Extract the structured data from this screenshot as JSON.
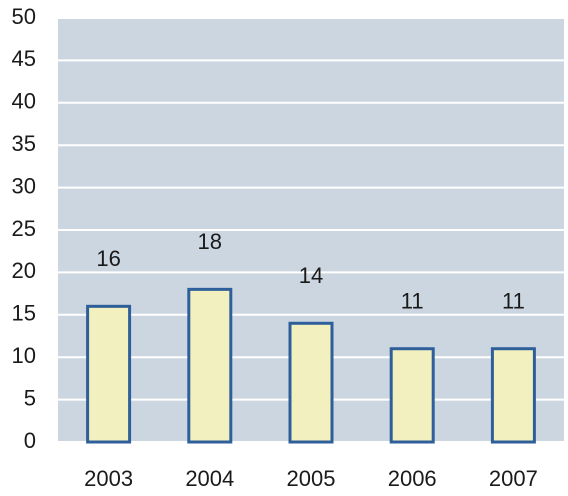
{
  "chart_data": {
    "type": "bar",
    "categories": [
      "2003",
      "2004",
      "2005",
      "2006",
      "2007"
    ],
    "values": [
      16,
      18,
      14,
      11,
      11
    ],
    "color": "#f2f0bf",
    "edge_color": "#2e5f9a",
    "background": "#ccd6e1",
    "ylim": [
      0,
      50
    ],
    "yticks": [
      0,
      5,
      10,
      15,
      20,
      25,
      30,
      35,
      40,
      45,
      50
    ],
    "grid": true
  }
}
